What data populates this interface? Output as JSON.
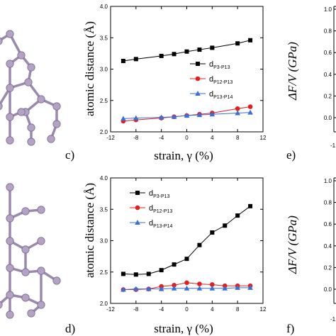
{
  "colors": {
    "black_series": "#000000",
    "red_series": "#e02020",
    "blue_series": "#3a6fd8",
    "atom_fill": "#b3a2c4",
    "atom_stroke": "#7e6b93",
    "bond": "#9a88ad"
  },
  "panel_labels": {
    "c": "c)",
    "d": "d)",
    "e": "e)",
    "f": "f)"
  },
  "right_axis": {
    "ylabel_top": "ΔF/V (GPa)",
    "ylabel_bottom": "ΔF/V (GPa)",
    "top_ticks": [
      "1.0",
      "0.8",
      "0.6",
      "0.4",
      "0.2",
      "0.0"
    ],
    "bottom_ticks": [
      "1.0",
      "0.8",
      "0.6",
      "0.4",
      "0.2",
      "0.0"
    ],
    "partial_tick_top": "-1",
    "partial_tick_bottom": "-1"
  },
  "chart_data": [
    {
      "type": "line",
      "panel": "c",
      "xlabel": "strain, γ (%)",
      "ylabel": "atomic distance (Å)",
      "xlim": [
        -12,
        12
      ],
      "ylim": [
        2.0,
        4.0
      ],
      "xticks": [
        -12,
        -8,
        -4,
        0,
        4,
        8,
        12
      ],
      "yticks": [
        2.0,
        2.5,
        3.0,
        3.5,
        4.0
      ],
      "legend_position": "middle-right",
      "series": [
        {
          "name": "d",
          "sub": "P3-P13",
          "marker": "square",
          "color": "#000000",
          "x": [
            -10,
            -8,
            -4,
            -2,
            0,
            2,
            4,
            8,
            10
          ],
          "values": [
            3.13,
            3.16,
            3.21,
            3.24,
            3.28,
            3.31,
            3.34,
            3.41,
            3.46
          ]
        },
        {
          "name": "d",
          "sub": "P12-P13",
          "marker": "circle",
          "color": "#e02020",
          "x": [
            -10,
            -8,
            -4,
            -2,
            0,
            2,
            4,
            8,
            10
          ],
          "values": [
            2.17,
            2.19,
            2.22,
            2.24,
            2.26,
            2.28,
            2.3,
            2.37,
            2.4
          ]
        },
        {
          "name": "d",
          "sub": "P13-P14",
          "marker": "triangle",
          "color": "#3a6fd8",
          "x": [
            -10,
            -8,
            -4,
            -2,
            0,
            2,
            4,
            8,
            10
          ],
          "values": [
            2.21,
            2.22,
            2.23,
            2.24,
            2.26,
            2.27,
            2.28,
            2.3,
            2.31
          ]
        }
      ]
    },
    {
      "type": "line",
      "panel": "d",
      "xlabel": "strain, γ (%)",
      "ylabel": "atomic distance (Å)",
      "xlim": [
        -12,
        12
      ],
      "ylim": [
        2.0,
        4.0
      ],
      "xticks": [
        -12,
        -8,
        -4,
        0,
        4,
        8,
        12
      ],
      "yticks": [
        2.0,
        2.5,
        3.0,
        3.5,
        4.0
      ],
      "legend_position": "upper-left",
      "series": [
        {
          "name": "d",
          "sub": "P3-P13",
          "marker": "square",
          "color": "#000000",
          "x": [
            -10,
            -8,
            -6,
            -4,
            -2,
            0,
            2,
            4,
            6,
            8,
            10
          ],
          "values": [
            2.47,
            2.46,
            2.47,
            2.53,
            2.62,
            2.71,
            2.93,
            3.13,
            3.24,
            3.4,
            3.55
          ]
        },
        {
          "name": "d",
          "sub": "P12-P13",
          "marker": "circle",
          "color": "#e02020",
          "x": [
            -10,
            -8,
            -6,
            -4,
            -2,
            0,
            2,
            4,
            6,
            8,
            10
          ],
          "values": [
            2.22,
            2.22,
            2.23,
            2.27,
            2.29,
            2.33,
            2.31,
            2.3,
            2.28,
            2.28,
            2.28
          ]
        },
        {
          "name": "d",
          "sub": "P13-P14",
          "marker": "triangle",
          "color": "#3a6fd8",
          "x": [
            -10,
            -8,
            -6,
            -4,
            -2,
            0,
            2,
            4,
            6,
            8,
            10
          ],
          "values": [
            2.22,
            2.23,
            2.23,
            2.23,
            2.24,
            2.24,
            2.24,
            2.24,
            2.24,
            2.25,
            2.25
          ]
        }
      ]
    }
  ]
}
